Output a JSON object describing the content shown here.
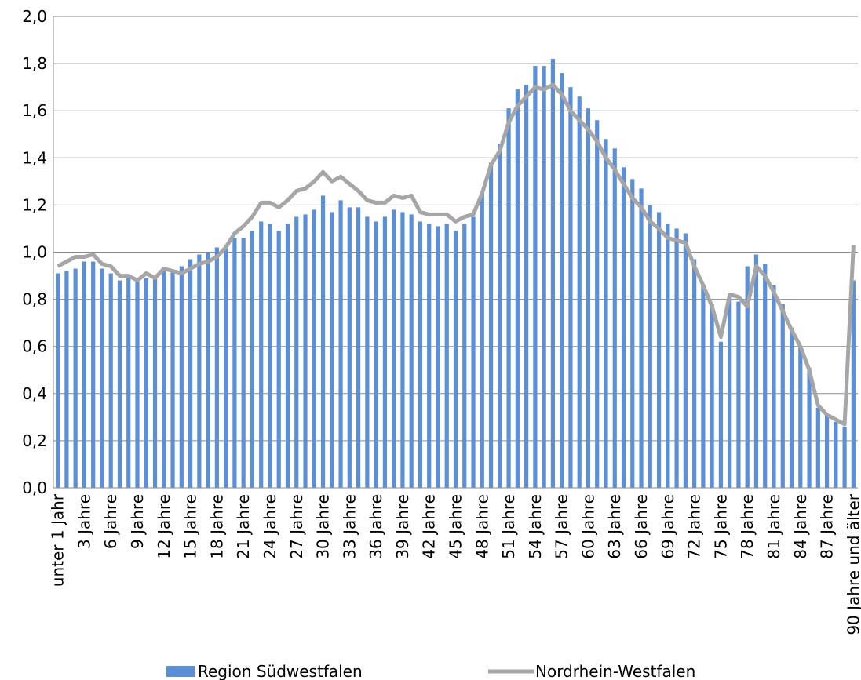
{
  "chart_data": {
    "type": "bar",
    "categories": [
      "unter 1 Jahr",
      null,
      null,
      "3 Jahre",
      null,
      null,
      "6 Jahre",
      null,
      null,
      "9 Jahre",
      null,
      null,
      "12 Jahre",
      null,
      null,
      "15 Jahre",
      null,
      null,
      "18 Jahre",
      null,
      null,
      "21 Jahre",
      null,
      null,
      "24 Jahre",
      null,
      null,
      "27 Jahre",
      null,
      null,
      "30 Jahre",
      null,
      null,
      "33 Jahre",
      null,
      null,
      "36 Jahre",
      null,
      null,
      "39 Jahre",
      null,
      null,
      "42 Jahre",
      null,
      null,
      "45 Jahre",
      null,
      null,
      "48 Jahre",
      null,
      null,
      "51 Jahre",
      null,
      null,
      "54 Jahre",
      null,
      null,
      "57 Jahre",
      null,
      null,
      "60 Jahre",
      null,
      null,
      "63 Jahre",
      null,
      null,
      "66 Jahre",
      null,
      null,
      "69 Jahre",
      null,
      null,
      "72 Jahre",
      null,
      null,
      "75 Jahre",
      null,
      null,
      "78 Jahre",
      null,
      null,
      "81 Jahre",
      null,
      null,
      "84 Jahre",
      null,
      null,
      "87 Jahre",
      null,
      null,
      "90 Jahre und älter"
    ],
    "series": [
      {
        "name": "Region Südwestfalen",
        "type": "bar",
        "color": "#5b8fd8",
        "values": [
          0.91,
          0.92,
          0.93,
          0.96,
          0.96,
          0.93,
          0.91,
          0.88,
          0.89,
          0.88,
          0.89,
          0.89,
          0.92,
          0.92,
          0.94,
          0.97,
          0.99,
          1.0,
          1.02,
          1.03,
          1.06,
          1.06,
          1.09,
          1.13,
          1.12,
          1.09,
          1.12,
          1.15,
          1.16,
          1.18,
          1.24,
          1.17,
          1.22,
          1.19,
          1.19,
          1.15,
          1.13,
          1.15,
          1.18,
          1.17,
          1.16,
          1.13,
          1.12,
          1.11,
          1.12,
          1.09,
          1.12,
          1.15,
          1.25,
          1.38,
          1.46,
          1.61,
          1.69,
          1.71,
          1.79,
          1.79,
          1.82,
          1.76,
          1.7,
          1.66,
          1.61,
          1.56,
          1.48,
          1.44,
          1.36,
          1.31,
          1.27,
          1.2,
          1.17,
          1.12,
          1.1,
          1.08,
          0.97,
          0.86,
          0.78,
          0.62,
          0.81,
          0.79,
          0.94,
          0.99,
          0.95,
          0.86,
          0.78,
          0.68,
          0.6,
          0.51,
          0.34,
          0.31,
          0.28,
          0.26,
          0.88
        ]
      },
      {
        "name": "Nordrhein-Westfalen",
        "type": "line",
        "color": "#a6a6a6",
        "values": [
          0.94,
          0.96,
          0.98,
          0.98,
          0.99,
          0.95,
          0.94,
          0.9,
          0.9,
          0.88,
          0.91,
          0.89,
          0.93,
          0.92,
          0.91,
          0.93,
          0.95,
          0.96,
          0.98,
          1.02,
          1.08,
          1.11,
          1.15,
          1.21,
          1.21,
          1.19,
          1.22,
          1.26,
          1.27,
          1.3,
          1.34,
          1.3,
          1.32,
          1.29,
          1.26,
          1.22,
          1.21,
          1.21,
          1.24,
          1.23,
          1.24,
          1.17,
          1.16,
          1.16,
          1.16,
          1.13,
          1.15,
          1.16,
          1.25,
          1.37,
          1.43,
          1.55,
          1.62,
          1.66,
          1.7,
          1.69,
          1.71,
          1.67,
          1.6,
          1.56,
          1.52,
          1.47,
          1.4,
          1.35,
          1.29,
          1.23,
          1.19,
          1.13,
          1.1,
          1.06,
          1.05,
          1.04,
          0.94,
          0.86,
          0.77,
          0.64,
          0.82,
          0.81,
          0.77,
          0.94,
          0.9,
          0.83,
          0.75,
          0.67,
          0.6,
          0.5,
          0.35,
          0.31,
          0.29,
          0.27,
          1.03
        ]
      }
    ],
    "ylim": [
      0,
      2
    ],
    "yticks": [
      {
        "value": 0,
        "label": "0,0"
      },
      {
        "value": 0.2,
        "label": "0,2"
      },
      {
        "value": 0.4,
        "label": "0,4"
      },
      {
        "value": 0.6,
        "label": "0,6"
      },
      {
        "value": 0.8,
        "label": "0,8"
      },
      {
        "value": 1,
        "label": "1,0"
      },
      {
        "value": 1.2,
        "label": "1,2"
      },
      {
        "value": 1.4,
        "label": "1,4"
      },
      {
        "value": 1.6,
        "label": "1,6"
      },
      {
        "value": 1.8,
        "label": "1,8"
      },
      {
        "value": 2,
        "label": "2,0"
      }
    ],
    "grid": true,
    "legend": "bottom"
  }
}
